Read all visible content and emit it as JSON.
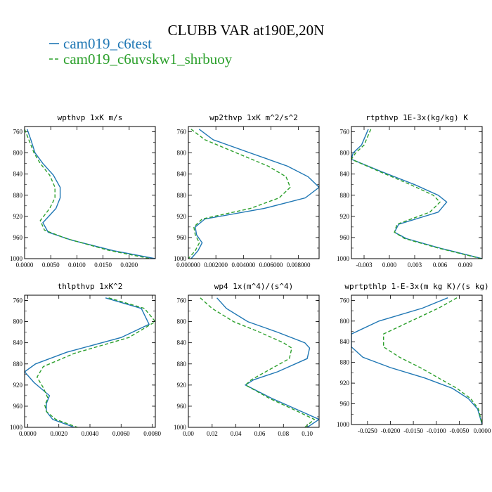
{
  "figure": {
    "title": "CLUBB VAR at190E,20N",
    "legend": [
      {
        "label": "cam019_c6test",
        "color": "#1f77b4",
        "dash": "solid"
      },
      {
        "label": "cam019_c6uvskw1_shrbuoy",
        "color": "#2ca02c",
        "dash": "dashed"
      }
    ]
  },
  "chart_data": [
    {
      "type": "line",
      "title": "wpthvp  1xK m/s",
      "xlim": [
        0.0,
        0.025
      ],
      "ylim": [
        750,
        1000
      ],
      "xticks": [
        0.0,
        0.005,
        0.01,
        0.015,
        0.02
      ],
      "xtick_labels": [
        "0.0000",
        "0.0050",
        "0.0100",
        "0.0150",
        "0.0200"
      ],
      "yticks": [
        760,
        800,
        840,
        880,
        920,
        960,
        1000
      ],
      "series": [
        {
          "name": "cam019_c6test",
          "x": [
            0.0005,
            0.0012,
            0.002,
            0.0035,
            0.0055,
            0.0068,
            0.0068,
            0.006,
            0.0035,
            0.0045,
            0.009,
            0.017,
            0.025
          ],
          "y": [
            755,
            775,
            800,
            820,
            842,
            865,
            885,
            905,
            932,
            950,
            965,
            985,
            1000
          ]
        },
        {
          "name": "cam019_c6uvskw1_shrbuoy",
          "x": [
            0.0,
            0.0008,
            0.0018,
            0.003,
            0.0048,
            0.0058,
            0.0058,
            0.0048,
            0.003,
            0.0038,
            0.008,
            0.016,
            0.024
          ],
          "y": [
            755,
            775,
            800,
            820,
            842,
            865,
            885,
            905,
            928,
            946,
            962,
            984,
            1000
          ]
        }
      ]
    },
    {
      "type": "line",
      "title": "wp2thvp  1xK m^2/s^2",
      "xlim": [
        0.0,
        0.0095
      ],
      "ylim": [
        750,
        1000
      ],
      "xticks": [
        0.0,
        0.002,
        0.004,
        0.006,
        0.008
      ],
      "xtick_labels": [
        "0.000000",
        "0.002000",
        "0.004000",
        "0.006000",
        "0.008000"
      ],
      "yticks": [
        760,
        800,
        840,
        880,
        920,
        960,
        1000
      ],
      "series": [
        {
          "name": "cam019_c6test",
          "x": [
            0.00078,
            0.0018,
            0.0045,
            0.0072,
            0.0087,
            0.0095,
            0.0085,
            0.0055,
            0.0012,
            0.0005,
            0.0006,
            0.001,
            0.0007,
            0.0002
          ],
          "y": [
            755,
            775,
            800,
            825,
            845,
            865,
            885,
            905,
            925,
            940,
            955,
            970,
            985,
            1000
          ]
        },
        {
          "name": "cam019_c6uvskw1_shrbuoy",
          "x": [
            0.0002,
            0.0012,
            0.0035,
            0.0058,
            0.0071,
            0.0074,
            0.0066,
            0.0045,
            0.001,
            0.0004,
            0.0005,
            0.0008,
            0.0005,
            0.0
          ],
          "y": [
            755,
            775,
            800,
            825,
            845,
            865,
            885,
            905,
            925,
            940,
            955,
            970,
            985,
            1000
          ]
        }
      ]
    },
    {
      "type": "line",
      "title": "rtpthvp  1E-3x(kg/kg) K",
      "xlim": [
        -0.0045,
        0.011
      ],
      "ylim": [
        750,
        1000
      ],
      "xticks": [
        -0.003,
        0.0,
        0.003,
        0.006,
        0.009
      ],
      "xtick_labels": [
        "-0.003",
        "0.000",
        "0.003",
        "0.006",
        "0.009"
      ],
      "yticks": [
        760,
        800,
        840,
        880,
        920,
        960,
        1000
      ],
      "series": [
        {
          "name": "cam019_c6test",
          "x": [
            -0.0025,
            -0.0033,
            -0.0043,
            -0.0045,
            -0.001,
            0.003,
            0.0058,
            0.0068,
            0.0058,
            0.0011,
            0.0006,
            0.002,
            0.006,
            0.011
          ],
          "y": [
            755,
            785,
            800,
            812,
            835,
            860,
            880,
            893,
            912,
            935,
            950,
            962,
            980,
            1000
          ]
        },
        {
          "name": "cam019_c6uvskw1_shrbuoy",
          "x": [
            -0.0022,
            -0.003,
            -0.004,
            -0.0045,
            -0.0012,
            0.0025,
            0.0052,
            0.006,
            0.0048,
            0.0009,
            0.0006,
            0.0018,
            0.0058,
            0.0109
          ],
          "y": [
            755,
            785,
            800,
            812,
            835,
            860,
            880,
            893,
            912,
            935,
            950,
            962,
            980,
            1000
          ]
        }
      ]
    },
    {
      "type": "line",
      "title": "thlpthvp  1xK^2",
      "xlim": [
        -0.0002,
        0.0082
      ],
      "ylim": [
        750,
        1000
      ],
      "xticks": [
        0.0,
        0.002,
        0.004,
        0.006,
        0.008
      ],
      "xtick_labels": [
        "0.0000",
        "0.0020",
        "0.0040",
        "0.0060",
        "0.0080"
      ],
      "yticks": [
        760,
        800,
        840,
        880,
        920,
        960,
        1000
      ],
      "series": [
        {
          "name": "cam019_c6test",
          "x": [
            0.005,
            0.0073,
            0.0078,
            0.006,
            0.0025,
            0.0005,
            -0.0002,
            0.0004,
            0.0014,
            0.0012,
            0.0012,
            0.0016,
            0.003
          ],
          "y": [
            755,
            775,
            805,
            830,
            858,
            880,
            895,
            915,
            940,
            955,
            970,
            985,
            1000
          ]
        },
        {
          "name": "cam019_c6uvskw1_shrbuoy",
          "x": [
            0.0052,
            0.0075,
            0.0082,
            0.0065,
            0.003,
            0.001,
            0.0006,
            0.001,
            0.0013,
            0.0011,
            0.0012,
            0.0018,
            0.0032
          ],
          "y": [
            755,
            775,
            800,
            830,
            860,
            885,
            905,
            925,
            945,
            958,
            970,
            985,
            1000
          ]
        }
      ]
    },
    {
      "type": "line",
      "title": "wp4  1x(m^4)/(s^4)",
      "xlim": [
        0.0,
        0.11
      ],
      "ylim": [
        750,
        1000
      ],
      "xticks": [
        0.0,
        0.02,
        0.04,
        0.06,
        0.08,
        0.1
      ],
      "xtick_labels": [
        "0.00",
        "0.02",
        "0.04",
        "0.06",
        "0.08",
        "0.10"
      ],
      "yticks": [
        760,
        800,
        840,
        880,
        920,
        960,
        1000
      ],
      "series": [
        {
          "name": "cam019_c6test",
          "x": [
            0.024,
            0.032,
            0.05,
            0.075,
            0.098,
            0.102,
            0.1,
            0.075,
            0.055,
            0.048,
            0.07,
            0.095,
            0.11,
            0.1
          ],
          "y": [
            755,
            775,
            800,
            820,
            840,
            850,
            870,
            895,
            910,
            920,
            945,
            970,
            985,
            1000
          ]
        },
        {
          "name": "cam019_c6uvskw1_shrbuoy",
          "x": [
            0.01,
            0.02,
            0.038,
            0.06,
            0.08,
            0.087,
            0.085,
            0.065,
            0.053,
            0.048,
            0.068,
            0.092,
            0.106,
            0.098
          ],
          "y": [
            755,
            775,
            800,
            820,
            840,
            850,
            870,
            895,
            910,
            920,
            945,
            970,
            985,
            1000
          ]
        }
      ]
    },
    {
      "type": "line",
      "title": "wprtpthlp  1-E-3x(m kg K)/(s kg)",
      "xlim": [
        -0.0285,
        0.0
      ],
      "ylim": [
        750,
        1000
      ],
      "xticks": [
        -0.025,
        -0.02,
        -0.015,
        -0.01,
        -0.005,
        0.0
      ],
      "xtick_labels": [
        "-0.0250",
        "-0.0200",
        "-0.0150",
        "-0.0100",
        "-0.0050",
        "0.0000"
      ],
      "yticks": [
        760,
        800,
        840,
        880,
        920,
        960,
        1000
      ],
      "series": [
        {
          "name": "cam019_c6test",
          "x": [
            -0.0075,
            -0.013,
            -0.0225,
            -0.0285,
            -0.0285,
            -0.026,
            -0.02,
            -0.0125,
            -0.0065,
            -0.003,
            -0.001,
            0.0
          ],
          "y": [
            755,
            775,
            800,
            825,
            850,
            870,
            890,
            910,
            930,
            950,
            970,
            1000
          ]
        },
        {
          "name": "cam019_c6uvskw1_shrbuoy",
          "x": [
            -0.0055,
            -0.0095,
            -0.0155,
            -0.0215,
            -0.0215,
            -0.018,
            -0.0135,
            -0.0095,
            -0.0055,
            -0.0025,
            -0.0008,
            0.0
          ],
          "y": [
            755,
            775,
            800,
            825,
            850,
            870,
            890,
            910,
            930,
            950,
            970,
            1000
          ]
        }
      ]
    }
  ]
}
